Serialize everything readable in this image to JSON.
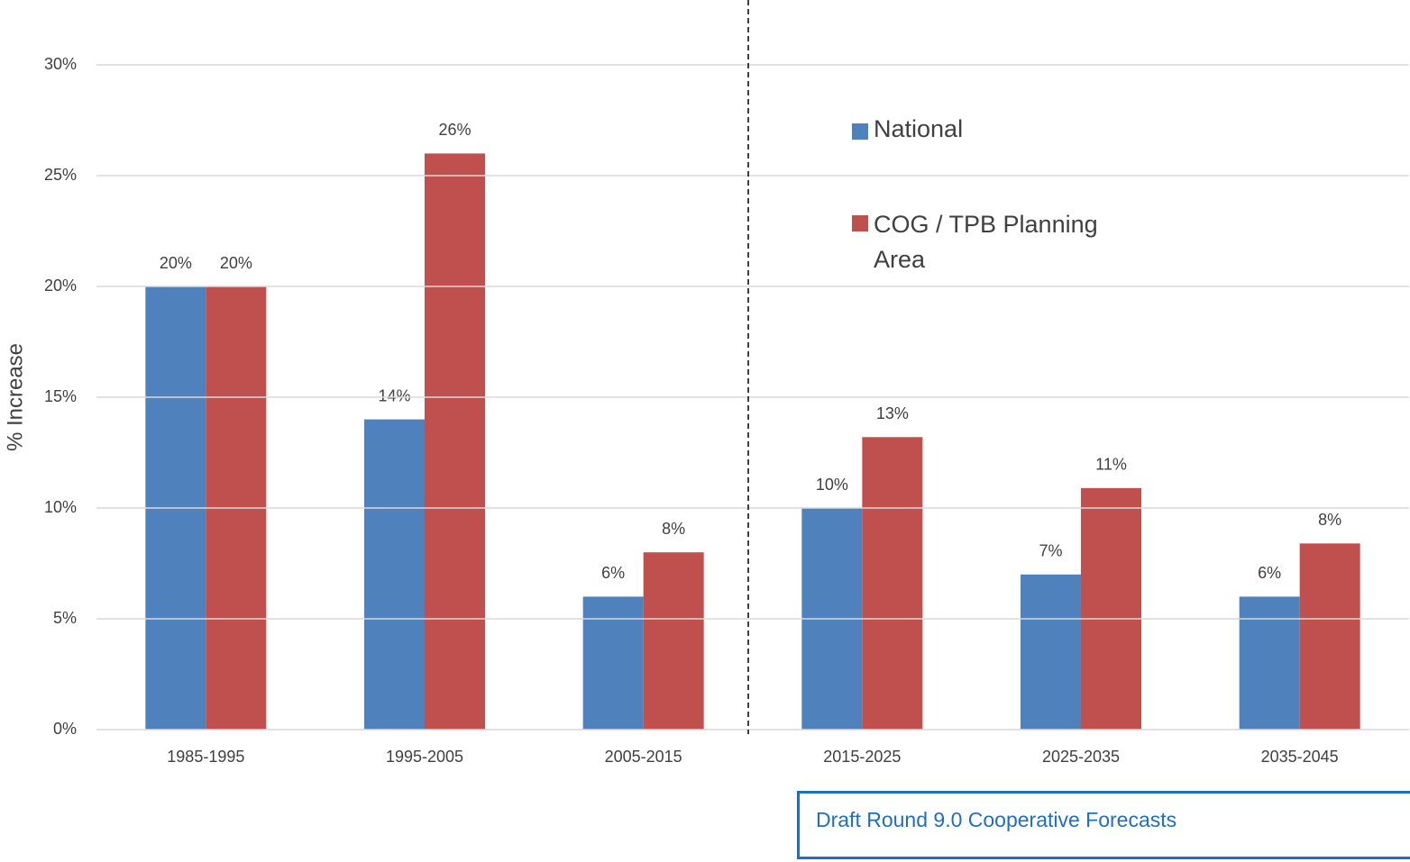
{
  "chart_data": {
    "type": "bar",
    "y_axis_label": "% Increase",
    "categories": [
      "1985-1995",
      "1995-2005",
      "2005-2015",
      "2015-2025",
      "2025-2035",
      "2035-2045"
    ],
    "series": [
      {
        "name": "National",
        "color": "#4f81bd",
        "values": [
          20,
          14,
          6,
          10,
          7,
          6
        ],
        "value_labels": [
          "20%",
          "14%",
          "6%",
          "10%",
          "7%",
          "6%"
        ]
      },
      {
        "name": "COG / TPB Planning Area",
        "color": "#c0504d",
        "values": [
          20,
          26,
          8,
          13.2,
          10.9,
          8.4
        ],
        "value_labels": [
          "20%",
          "26%",
          "8%",
          "13%",
          "11%",
          "8%"
        ]
      }
    ],
    "ylim": [
      0,
      30
    ],
    "yticks": [
      {
        "value": 0,
        "label": "0%"
      },
      {
        "value": 5,
        "label": "5%"
      },
      {
        "value": 10,
        "label": "10%"
      },
      {
        "value": 15,
        "label": "15%"
      },
      {
        "value": 20,
        "label": "20%"
      },
      {
        "value": 25,
        "label": "25%"
      },
      {
        "value": 30,
        "label": "30%"
      }
    ],
    "grid": true,
    "annotation": "Draft Round 9.0 Cooperative Forecasts"
  }
}
